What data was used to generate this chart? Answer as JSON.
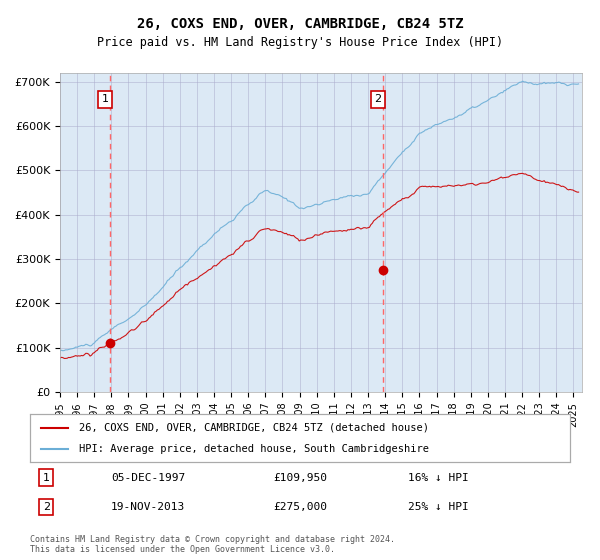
{
  "title": "26, COXS END, OVER, CAMBRIDGE, CB24 5TZ",
  "subtitle": "Price paid vs. HM Land Registry's House Price Index (HPI)",
  "background_color": "#dce9f5",
  "plot_bg_color": "#dce9f5",
  "hpi_color": "#6baed6",
  "price_color": "#cc0000",
  "purchase1_date_label": "05-DEC-1997",
  "purchase1_price": 109950,
  "purchase1_pct": "16% ↓ HPI",
  "purchase1_year": 1997.92,
  "purchase2_date_label": "19-NOV-2013",
  "purchase2_price": 275000,
  "purchase2_pct": "25% ↓ HPI",
  "purchase2_year": 2013.88,
  "legend_label_price": "26, COXS END, OVER, CAMBRIDGE, CB24 5TZ (detached house)",
  "legend_label_hpi": "HPI: Average price, detached house, South Cambridgeshire",
  "footer": "Contains HM Land Registry data © Crown copyright and database right 2024.\nThis data is licensed under the Open Government Licence v3.0.",
  "ylim": [
    0,
    720000
  ],
  "yticks": [
    0,
    100000,
    200000,
    300000,
    400000,
    500000,
    600000,
    700000
  ],
  "ytick_labels": [
    "£0",
    "£100K",
    "£200K",
    "£300K",
    "£400K",
    "£500K",
    "£600K",
    "£700K"
  ],
  "xstart": 1995.0,
  "xend": 2025.5,
  "grid_color": "#aaaacc",
  "dashed_color": "#ff6666"
}
